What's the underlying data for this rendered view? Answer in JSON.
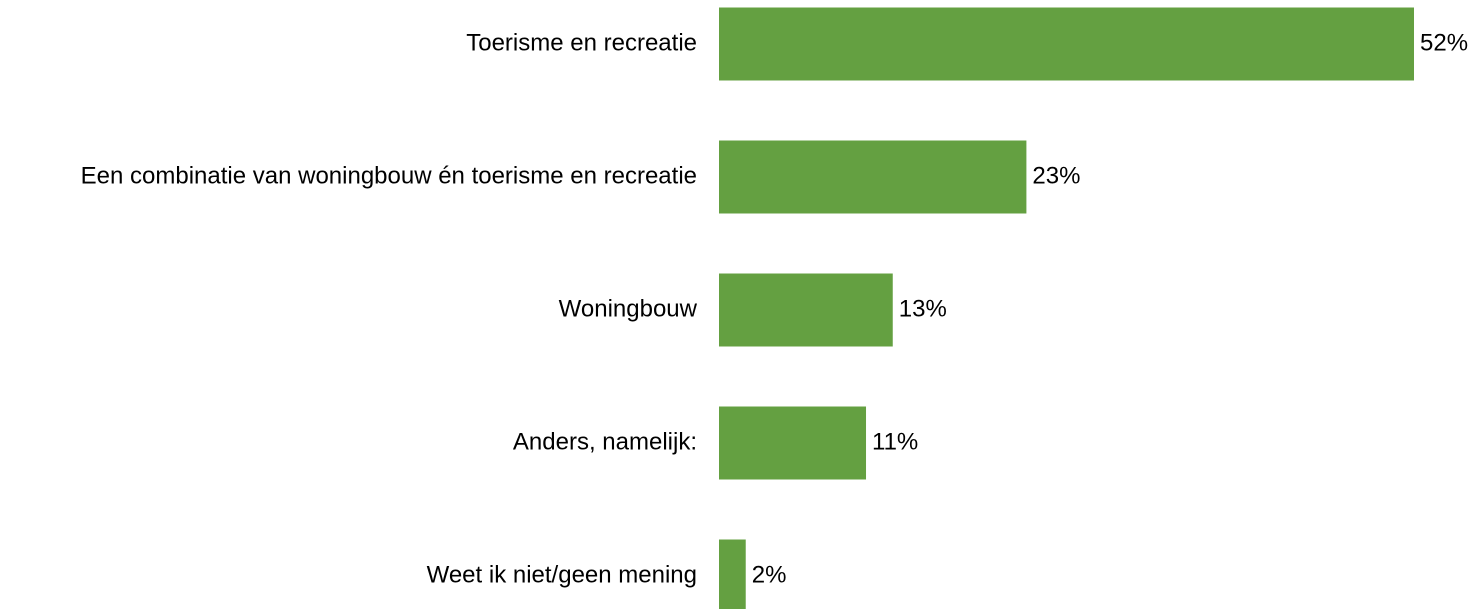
{
  "chart_data": {
    "type": "hbar",
    "categories": [
      "Toerisme en recreatie",
      "Een combinatie van woningbouw én toerisme en recreatie",
      "Woningbouw",
      "Anders, namelijk:",
      "Weet ik niet/geen mening"
    ],
    "values": [
      52,
      23,
      13,
      11,
      2
    ],
    "value_labels": [
      "52%",
      "23%",
      "13%",
      "11%",
      "2%"
    ],
    "color": "#64a041"
  }
}
